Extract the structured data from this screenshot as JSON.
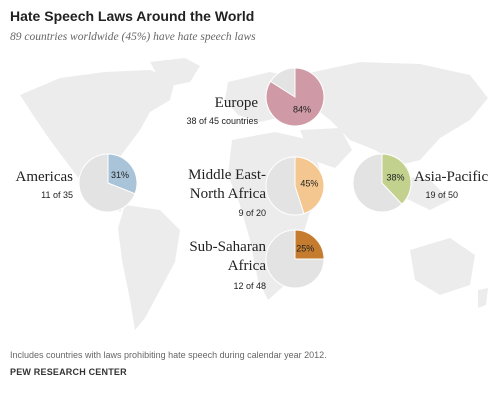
{
  "chart_data": {
    "type": "pie",
    "title": "Hate Speech Laws Around the World",
    "subtitle": "89 countries worldwide (45%) have hate speech laws",
    "colors": {
      "remainder": "#e3e3e3",
      "map_land": "#ececec"
    },
    "regions": [
      {
        "name": "Europe",
        "name_lines": [
          "Europe"
        ],
        "value": 84,
        "value_label": "84%",
        "count_label": "38 of 45 countries",
        "color": "#cf9aa5"
      },
      {
        "name": "Americas",
        "name_lines": [
          "Americas"
        ],
        "value": 31,
        "value_label": "31%",
        "count_label": "11 of 35",
        "color": "#a9c3d8"
      },
      {
        "name": "Middle East-North Africa",
        "name_lines": [
          "Middle East-",
          "North Africa"
        ],
        "value": 45,
        "value_label": "45%",
        "count_label": "9 of 20",
        "color": "#f3c78f"
      },
      {
        "name": "Asia-Pacific",
        "name_lines": [
          "Asia-Pacific"
        ],
        "value": 38,
        "value_label": "38%",
        "count_label": "19 of 50",
        "color": "#c2d18e"
      },
      {
        "name": "Sub-Saharan Africa",
        "name_lines": [
          "Sub-Saharan",
          "Africa"
        ],
        "value": 25,
        "value_label": "25%",
        "count_label": "12 of 48",
        "color": "#c57c2f"
      }
    ],
    "note": "Includes countries with laws prohibiting hate speech during calendar year 2012.",
    "source": "PEW RESEARCH CENTER"
  }
}
